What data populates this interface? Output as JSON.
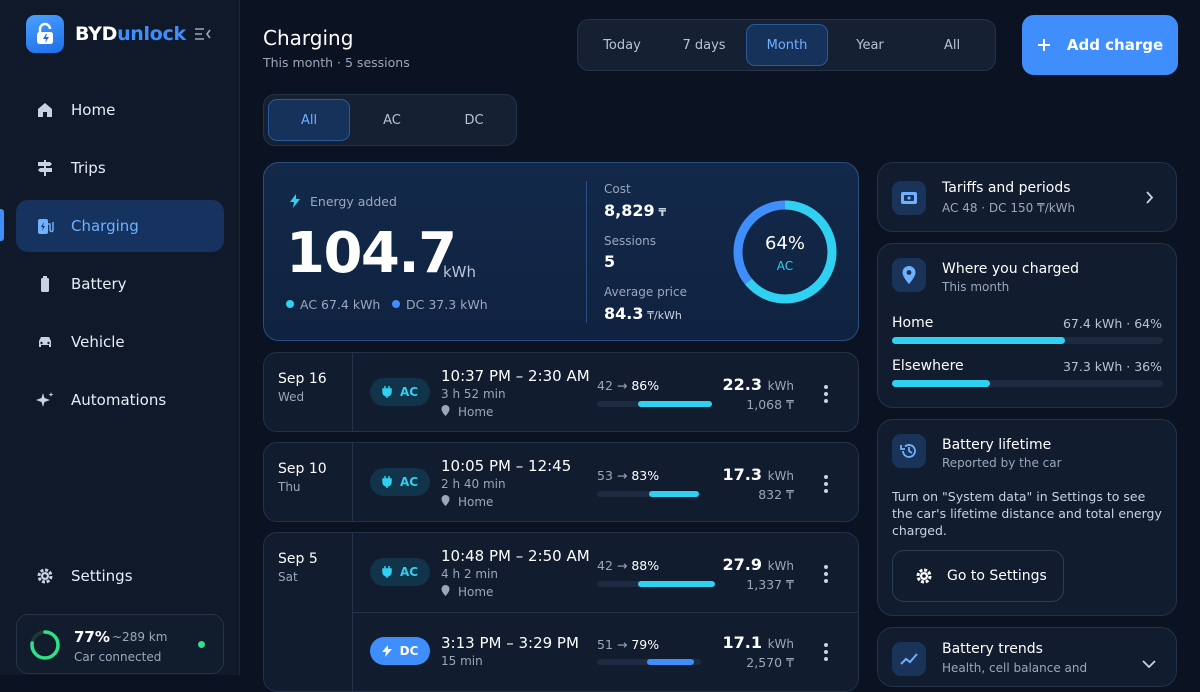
{
  "brand": {
    "name_part1": "BYD",
    "name_part2": "unlock"
  },
  "sidebar": {
    "items": [
      {
        "label": "Home",
        "icon": "home-icon"
      },
      {
        "label": "Trips",
        "icon": "signpost-icon"
      },
      {
        "label": "Charging",
        "icon": "ev-charger-icon",
        "active": true
      },
      {
        "label": "Battery",
        "icon": "battery-icon"
      },
      {
        "label": "Vehicle",
        "icon": "car-icon"
      },
      {
        "label": "Automations",
        "icon": "sparkle-icon"
      }
    ],
    "settings_label": "Settings",
    "car_status": {
      "battery_percent": "77%",
      "range": "~289 km",
      "connection": "Car connected",
      "battery_level": 0.77
    }
  },
  "header": {
    "title": "Charging",
    "subtitle": "This month · 5 sessions"
  },
  "period_tabs": [
    "Today",
    "7 days",
    "Month",
    "Year",
    "All"
  ],
  "period_selected": "Month",
  "type_tabs": [
    "All",
    "AC",
    "DC"
  ],
  "type_selected": "All",
  "add_button_label": "Add charge",
  "summary": {
    "energy_label": "Energy added",
    "energy_value": "104.7",
    "energy_unit": "kWh",
    "ac_breakdown": "AC 67.4 kWh",
    "dc_breakdown": "DC 37.3 kWh",
    "cost_label": "Cost",
    "cost_value": "8,829",
    "sessions_label": "Sessions",
    "sessions_value": "5",
    "avg_price_label": "Average price",
    "avg_price_value": "84.3",
    "avg_price_unit": "/kWh",
    "ring_percent": "64%",
    "ring_label": "AC",
    "ring_fraction": 0.64
  },
  "sessions": [
    {
      "date": "Sep 16",
      "day": "Wed",
      "type": "AC",
      "time": "10:37 PM – 2:30 AM",
      "duration": "3 h 52 min",
      "location": "Home",
      "soc_from": "42",
      "soc_to": "86%",
      "soc_start": 0.42,
      "soc_end": 0.86,
      "kwh": "22.3",
      "kwh_unit": "kWh",
      "cost": "1,068"
    },
    {
      "date": "Sep 10",
      "day": "Thu",
      "type": "AC",
      "time": "10:05 PM – 12:45",
      "duration": "2 h 40 min",
      "location": "Home",
      "soc_from": "53",
      "soc_to": "83%",
      "soc_start": 0.53,
      "soc_end": 0.83,
      "kwh": "17.3",
      "kwh_unit": "kWh",
      "cost": "832"
    },
    {
      "date": "Sep 5",
      "day": "Sat",
      "type": "AC",
      "time": "10:48 PM – 2:50 AM",
      "duration": "4 h 2 min",
      "location": "Home",
      "soc_from": "42",
      "soc_to": "88%",
      "soc_start": 0.42,
      "soc_end": 0.88,
      "kwh": "27.9",
      "kwh_unit": "kWh",
      "cost": "1,337"
    },
    {
      "date": "",
      "day": "",
      "type": "DC",
      "time": "3:13 PM – 3:29 PM",
      "duration": "15 min",
      "location": "",
      "soc_from": "51",
      "soc_to": "79%",
      "soc_start": 0.51,
      "soc_end": 0.79,
      "kwh": "17.1",
      "kwh_unit": "kWh",
      "cost": "2,570"
    }
  ],
  "tariffs": {
    "title": "Tariffs and periods",
    "subtitle": "AC 48 · DC 150 ₸/kWh"
  },
  "where": {
    "title": "Where you charged",
    "subtitle": "This month",
    "rows": [
      {
        "label": "Home",
        "value": "67.4 kWh · 64%",
        "fraction": 0.64
      },
      {
        "label": "Elsewhere",
        "value": "37.3 kWh · 36%",
        "fraction": 0.36
      }
    ]
  },
  "battery_lifetime": {
    "title": "Battery lifetime",
    "subtitle": "Reported by the car",
    "body": "Turn on \"System data\" in Settings to see the car's lifetime distance and total energy charged.",
    "button_label": "Go to Settings"
  },
  "battery_trends": {
    "title": "Battery trends",
    "subtitle": "Health, cell balance and"
  },
  "colors": {
    "accent": "#3f8efc",
    "ac": "#2fd0f0",
    "background": "#0b1322"
  }
}
